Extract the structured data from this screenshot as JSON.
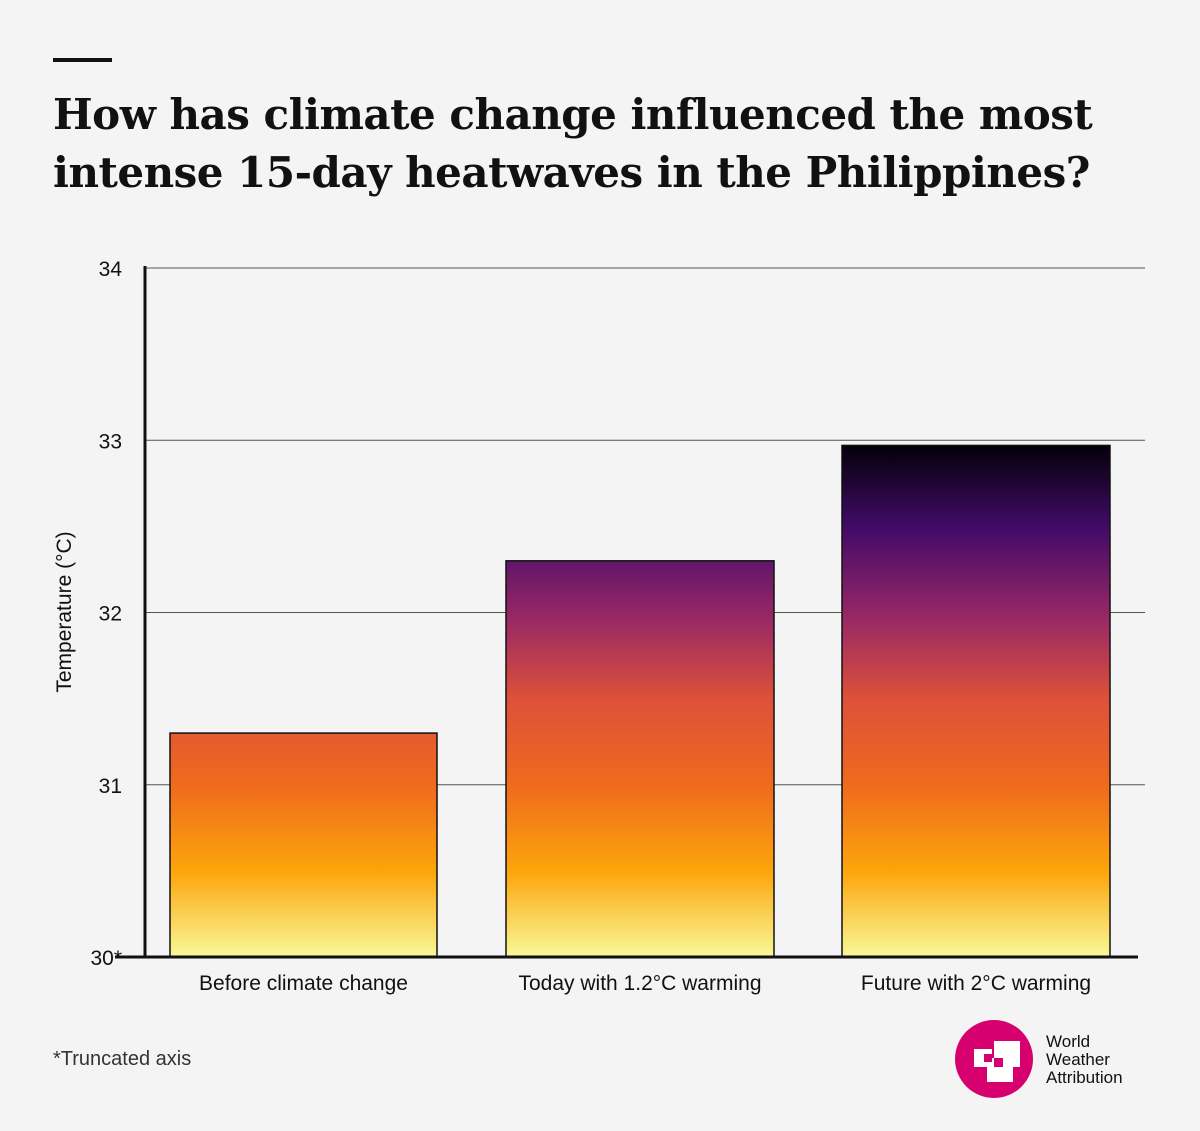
{
  "title": "How has climate change influenced the most intense 15-day heatwaves in the Philippines?",
  "footnote": "*Truncated axis",
  "logo": {
    "lines": [
      "World",
      "Weather",
      "Attribution"
    ],
    "color": "#d6006f"
  },
  "chart_data": {
    "type": "bar",
    "title": "How has climate change influenced the most intense 15-day heatwaves in the Philippines?",
    "xlabel": "",
    "ylabel": "Temperature (°C)",
    "ylim": [
      30,
      34
    ],
    "yticks": [
      "30*",
      "31",
      "32",
      "33",
      "34"
    ],
    "ytick_values": [
      30,
      31,
      32,
      33,
      34
    ],
    "grid": true,
    "categories": [
      "Before climate change",
      "Today with 1.2°C warming",
      "Future with 2°C warming"
    ],
    "values": [
      31.3,
      32.3,
      32.97
    ],
    "colormap": [
      "#f8f99a",
      "#fca50a",
      "#f06a1e",
      "#dd513a",
      "#932667",
      "#420a68",
      "#000004"
    ]
  }
}
